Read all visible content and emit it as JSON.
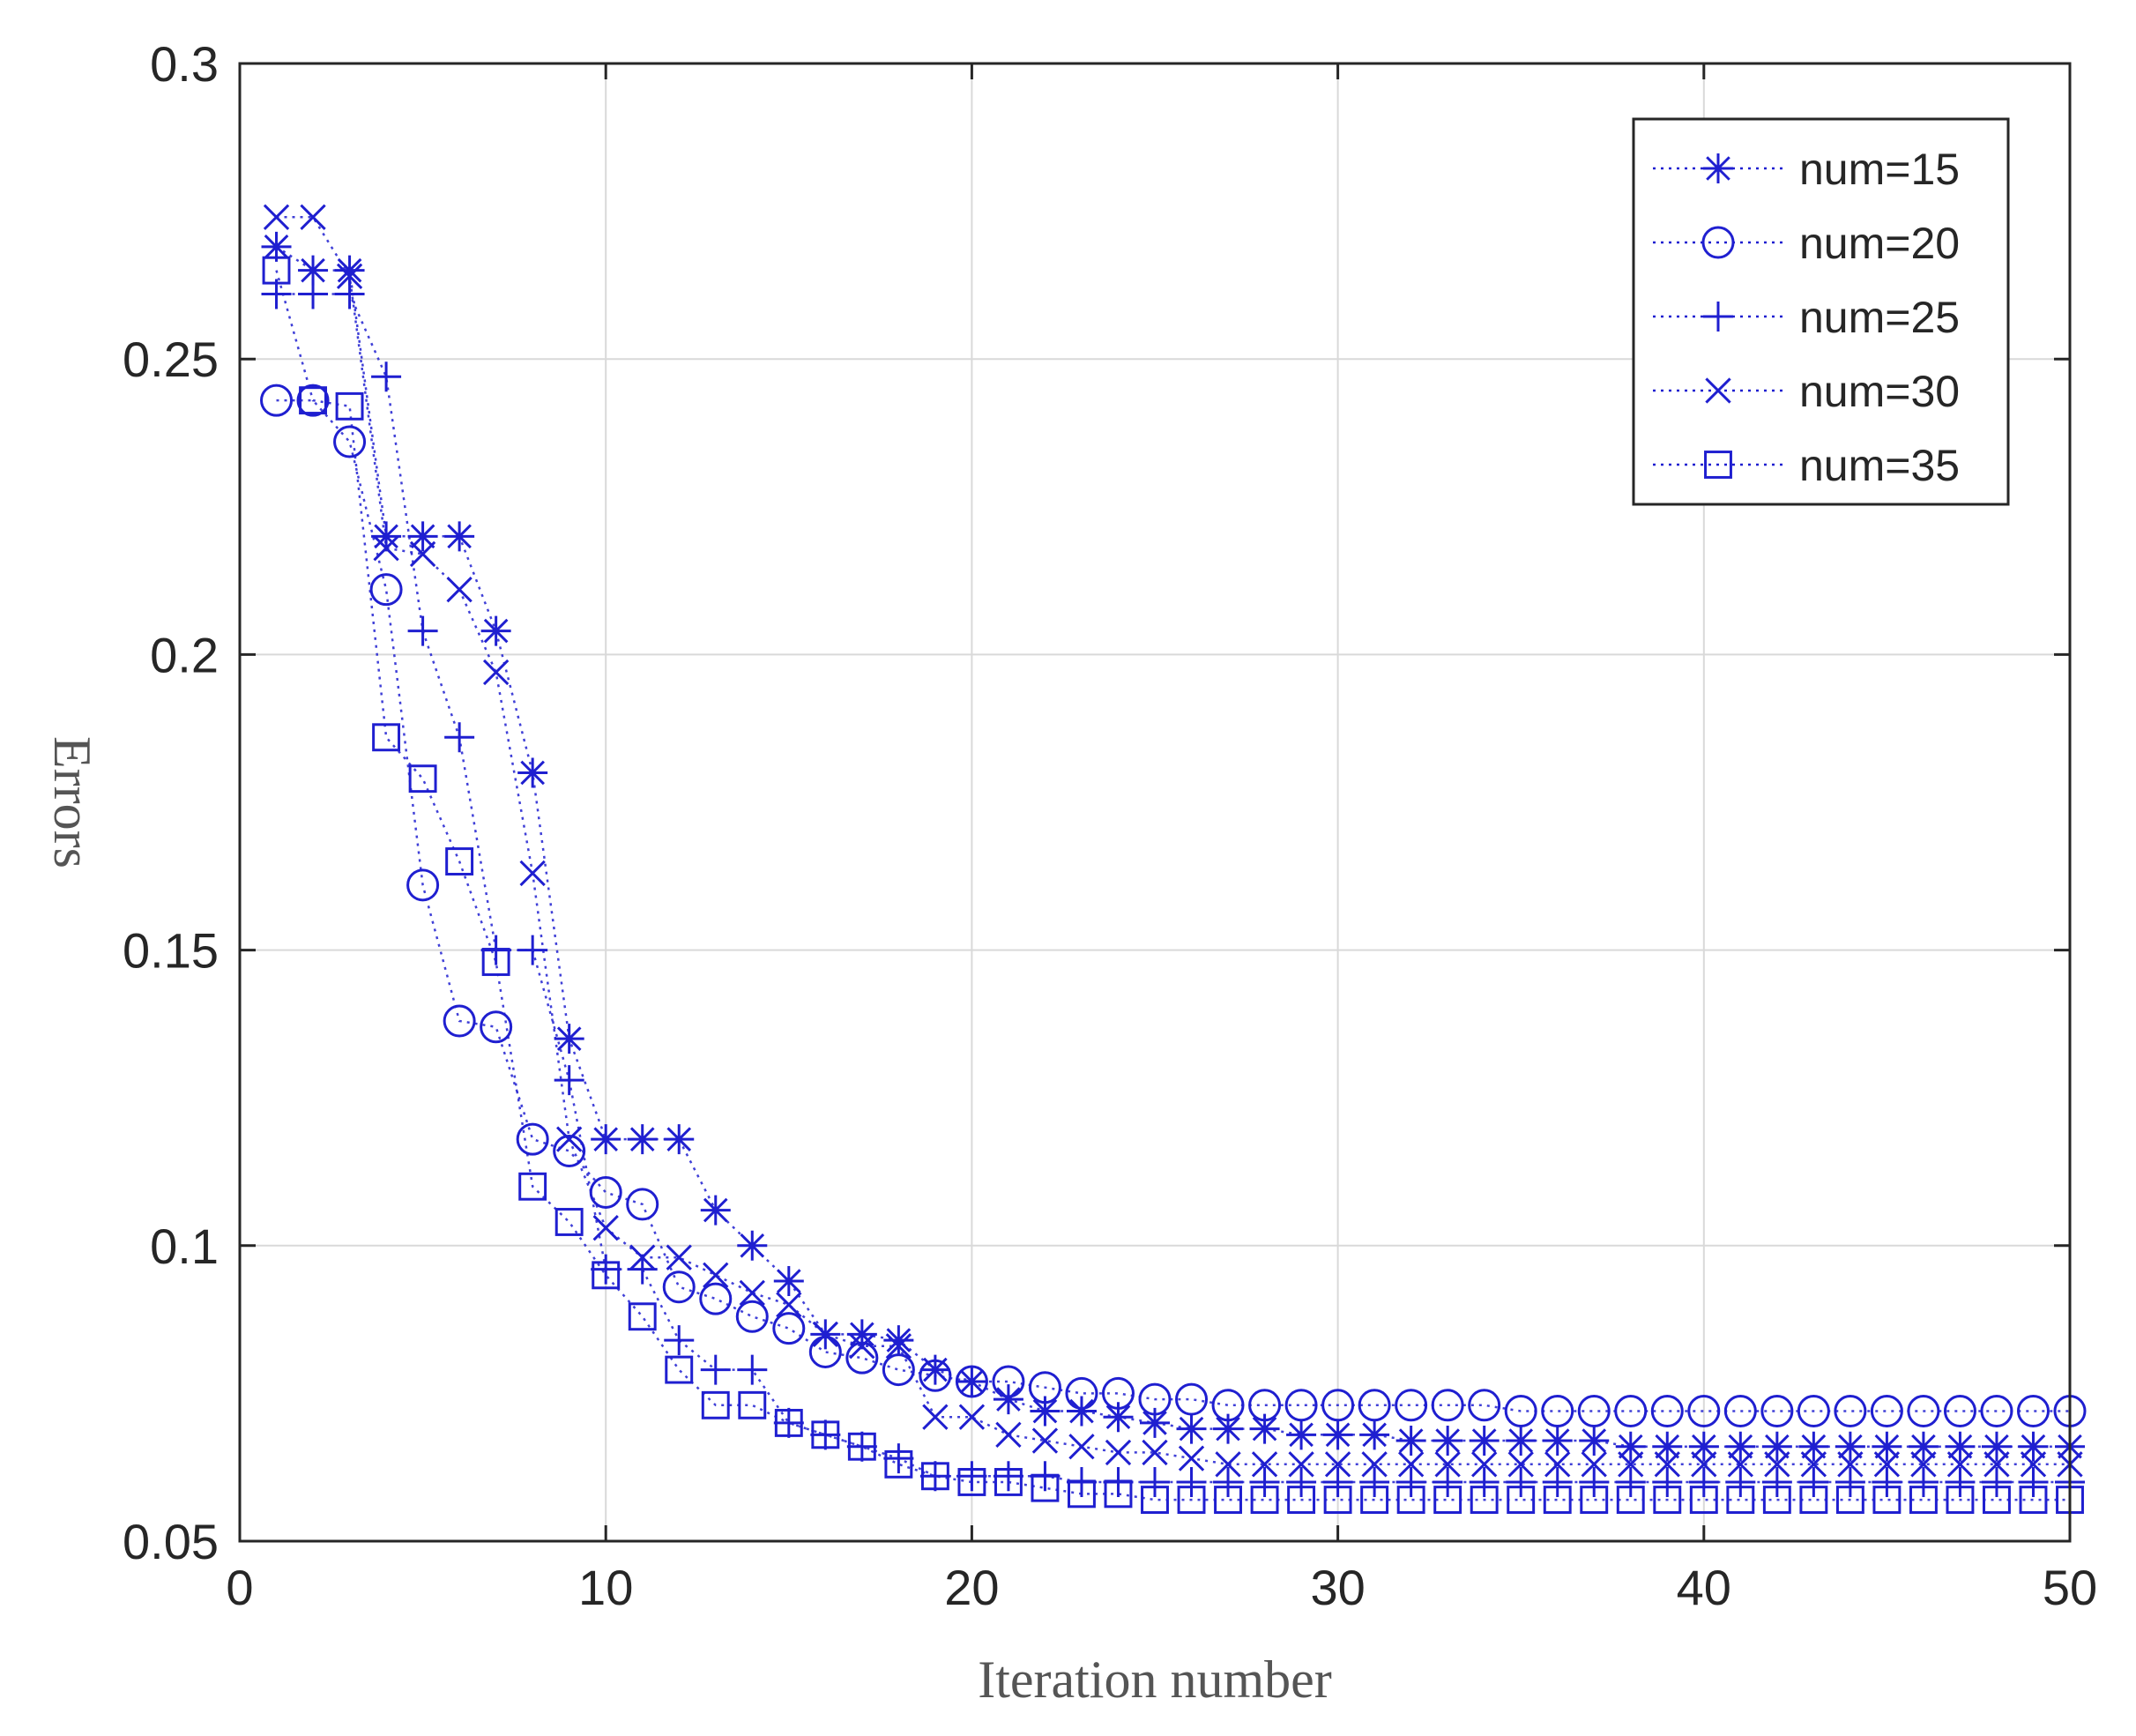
{
  "colors": {
    "series": "#1f1fd0",
    "grid": "#d9d9d9",
    "axis": "#262626",
    "background": "#ffffff"
  },
  "chart_data": {
    "type": "line",
    "title": "",
    "xlabel": "Iteration number",
    "ylabel": "Errors",
    "xlim": [
      0,
      50
    ],
    "ylim": [
      0.05,
      0.3
    ],
    "xticks": [
      "0",
      "10",
      "20",
      "30",
      "40",
      "50"
    ],
    "yticks": [
      "0.05",
      "0.1",
      "0.15",
      "0.2",
      "0.25",
      "0.3"
    ],
    "grid": true,
    "legend_position": "top-right",
    "x": [
      1,
      2,
      3,
      4,
      5,
      6,
      7,
      8,
      9,
      10,
      11,
      12,
      13,
      14,
      15,
      16,
      17,
      18,
      19,
      20,
      21,
      22,
      23,
      24,
      25,
      26,
      27,
      28,
      29,
      30,
      31,
      32,
      33,
      34,
      35,
      36,
      37,
      38,
      39,
      40,
      41,
      42,
      43,
      44,
      45,
      46,
      47,
      48,
      49,
      50
    ],
    "series": [
      {
        "name": "num=15",
        "marker": "asterisk",
        "values": [
          0.269,
          0.265,
          0.265,
          0.22,
          0.22,
          0.22,
          0.204,
          0.18,
          0.135,
          0.118,
          0.118,
          0.118,
          0.106,
          0.1,
          0.094,
          0.085,
          0.085,
          0.084,
          0.079,
          0.077,
          0.074,
          0.072,
          0.072,
          0.071,
          0.07,
          0.069,
          0.069,
          0.069,
          0.068,
          0.068,
          0.068,
          0.067,
          0.067,
          0.067,
          0.067,
          0.067,
          0.067,
          0.066,
          0.066,
          0.066,
          0.066,
          0.066,
          0.066,
          0.066,
          0.066,
          0.066,
          0.066,
          0.066,
          0.066,
          0.066
        ]
      },
      {
        "name": "num=20",
        "marker": "circle",
        "values": [
          0.243,
          0.243,
          0.236,
          0.211,
          0.161,
          0.138,
          0.137,
          0.118,
          0.116,
          0.109,
          0.107,
          0.093,
          0.091,
          0.088,
          0.086,
          0.082,
          0.081,
          0.079,
          0.078,
          0.077,
          0.077,
          0.076,
          0.075,
          0.075,
          0.074,
          0.074,
          0.073,
          0.073,
          0.073,
          0.073,
          0.073,
          0.073,
          0.073,
          0.073,
          0.072,
          0.072,
          0.072,
          0.072,
          0.072,
          0.072,
          0.072,
          0.072,
          0.072,
          0.072,
          0.072,
          0.072,
          0.072,
          0.072,
          0.072,
          0.072
        ]
      },
      {
        "name": "num=25",
        "marker": "plus",
        "values": [
          0.261,
          0.261,
          0.261,
          0.247,
          0.204,
          0.186,
          0.15,
          0.15,
          0.128,
          0.096,
          0.096,
          0.084,
          0.079,
          0.079,
          0.07,
          0.068,
          0.066,
          0.064,
          0.061,
          0.061,
          0.061,
          0.061,
          0.06,
          0.06,
          0.06,
          0.06,
          0.06,
          0.06,
          0.06,
          0.06,
          0.06,
          0.06,
          0.06,
          0.06,
          0.06,
          0.06,
          0.06,
          0.06,
          0.06,
          0.06,
          0.06,
          0.06,
          0.06,
          0.06,
          0.06,
          0.06,
          0.06,
          0.06,
          0.06,
          0.06
        ]
      },
      {
        "name": "num=30",
        "marker": "x",
        "values": [
          0.274,
          0.274,
          0.264,
          0.218,
          0.217,
          0.211,
          0.197,
          0.163,
          0.118,
          0.103,
          0.098,
          0.098,
          0.095,
          0.092,
          0.09,
          0.085,
          0.083,
          0.083,
          0.071,
          0.071,
          0.068,
          0.067,
          0.066,
          0.065,
          0.065,
          0.064,
          0.063,
          0.063,
          0.063,
          0.063,
          0.063,
          0.063,
          0.063,
          0.063,
          0.063,
          0.063,
          0.063,
          0.063,
          0.063,
          0.063,
          0.063,
          0.063,
          0.063,
          0.063,
          0.063,
          0.063,
          0.063,
          0.063,
          0.063,
          0.063
        ]
      },
      {
        "name": "num=35",
        "marker": "square",
        "values": [
          0.265,
          0.243,
          0.242,
          0.186,
          0.179,
          0.165,
          0.148,
          0.11,
          0.104,
          0.095,
          0.088,
          0.079,
          0.073,
          0.073,
          0.07,
          0.068,
          0.066,
          0.063,
          0.061,
          0.06,
          0.06,
          0.059,
          0.058,
          0.058,
          0.057,
          0.057,
          0.057,
          0.057,
          0.057,
          0.057,
          0.057,
          0.057,
          0.057,
          0.057,
          0.057,
          0.057,
          0.057,
          0.057,
          0.057,
          0.057,
          0.057,
          0.057,
          0.057,
          0.057,
          0.057,
          0.057,
          0.057,
          0.057,
          0.057,
          0.057
        ]
      }
    ]
  }
}
